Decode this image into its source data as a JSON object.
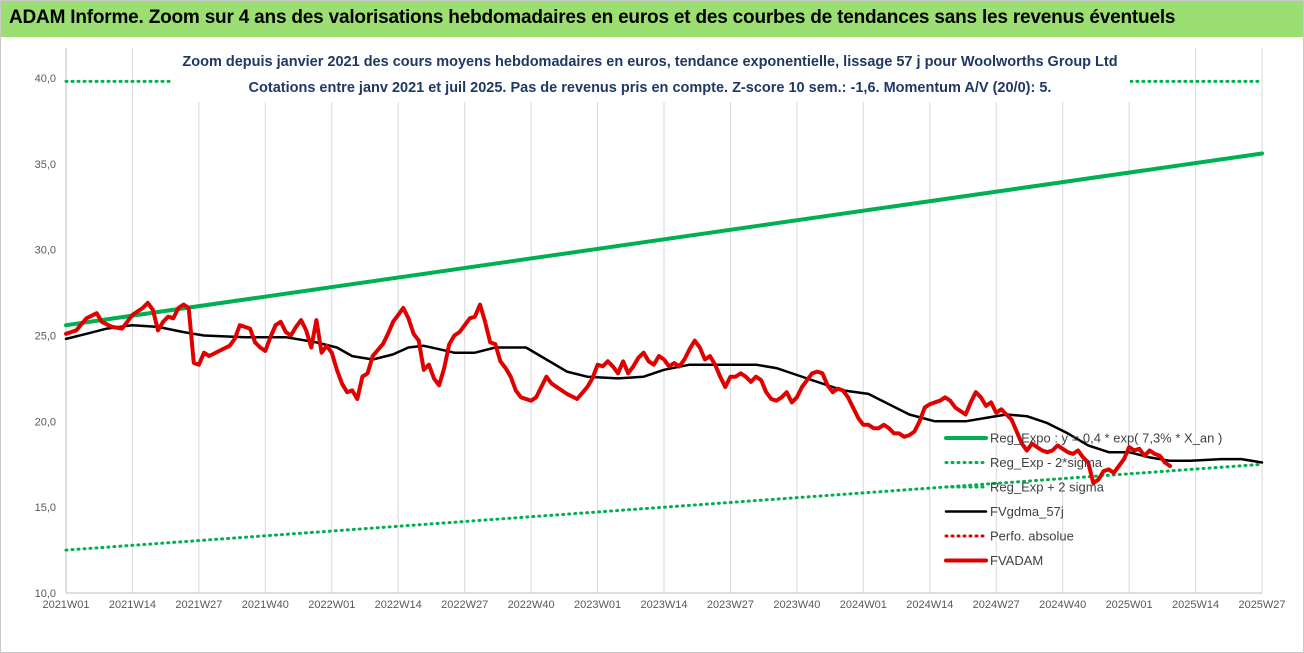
{
  "header": {
    "title": "ADAM Informe. Zoom sur 4 ans des valorisations hebdomadaires en euros et des courbes de tendances sans les revenus éventuels"
  },
  "chart_data": {
    "type": "line",
    "subtitle_line1": "Zoom depuis janvier 2021 des cours moyens hebdomadaires en euros, tendance exponentielle, lissage 57 j pour Woolworths Group Ltd",
    "subtitle_line2": "Cotations entre janv 2021 et juil 2025. Pas de revenus pris en compte. Z-score 10 sem.: -1,6. Momentum A/V (20/0): 5.",
    "xlabel": "",
    "ylabel": "",
    "ylim": [
      10,
      40
    ],
    "yticks": [
      "10,0",
      "15,0",
      "20,0",
      "25,0",
      "30,0",
      "35,0",
      "40,0"
    ],
    "x_tick_labels": [
      "2021W01",
      "2021W14",
      "2021W27",
      "2021W40",
      "2022W01",
      "2022W14",
      "2022W27",
      "2022W40",
      "2023W01",
      "2023W14",
      "2023W27",
      "2023W40",
      "2024W01",
      "2024W14",
      "2024W27",
      "2024W40",
      "2025W01",
      "2025W14",
      "2025W27"
    ],
    "grid": "vertical",
    "legend_position": "right",
    "series": [
      {
        "name": "Reg_Expo : y = 0,4 * exp( 7,3% *  X_an )",
        "color": "#00b050",
        "style": "solid-thick",
        "values": [
          [
            0,
            25.6
          ],
          [
            234,
            35.6
          ]
        ]
      },
      {
        "name": "Reg_Exp - 2*sigma",
        "color": "#00b050",
        "style": "dotted",
        "values": [
          [
            0,
            12.5
          ],
          [
            234,
            17.5
          ]
        ]
      },
      {
        "name": "Reg_Exp + 2 sigma",
        "color": "#00b050",
        "style": "dotted",
        "values": [
          [
            0,
            39.8
          ],
          [
            21,
            39.8
          ],
          [
            206,
            39.8
          ],
          [
            234,
            39.8
          ]
        ]
      },
      {
        "name": "FVgdma_57j",
        "color": "#000000",
        "style": "solid",
        "values": [
          [
            0,
            24.8
          ],
          [
            4,
            25.1
          ],
          [
            8,
            25.4
          ],
          [
            13,
            25.6
          ],
          [
            18,
            25.5
          ],
          [
            23,
            25.2
          ],
          [
            27,
            25.0
          ],
          [
            35,
            24.9
          ],
          [
            43,
            24.9
          ],
          [
            49,
            24.6
          ],
          [
            53,
            24.3
          ],
          [
            56,
            23.8
          ],
          [
            60,
            23.6
          ],
          [
            64,
            23.9
          ],
          [
            67,
            24.3
          ],
          [
            70,
            24.4
          ],
          [
            73,
            24.2
          ],
          [
            76,
            24.0
          ],
          [
            80,
            24.0
          ],
          [
            84,
            24.3
          ],
          [
            90,
            24.3
          ],
          [
            94,
            23.6
          ],
          [
            98,
            22.9
          ],
          [
            102,
            22.6
          ],
          [
            108,
            22.5
          ],
          [
            113,
            22.6
          ],
          [
            117,
            23.0
          ],
          [
            122,
            23.3
          ],
          [
            127,
            23.3
          ],
          [
            131,
            23.3
          ],
          [
            135,
            23.3
          ],
          [
            139,
            23.1
          ],
          [
            143,
            22.7
          ],
          [
            148,
            22.2
          ],
          [
            152,
            21.8
          ],
          [
            157,
            21.6
          ],
          [
            161,
            21.0
          ],
          [
            165,
            20.4
          ],
          [
            170,
            20.0
          ],
          [
            176,
            20.0
          ],
          [
            180,
            20.2
          ],
          [
            184,
            20.4
          ],
          [
            188,
            20.3
          ],
          [
            192,
            19.9
          ],
          [
            196,
            19.3
          ],
          [
            200,
            18.6
          ],
          [
            204,
            18.2
          ],
          [
            208,
            18.2
          ],
          [
            212,
            17.9
          ],
          [
            216,
            17.7
          ],
          [
            220,
            17.7
          ],
          [
            226,
            17.8
          ],
          [
            230,
            17.8
          ],
          [
            234,
            17.6
          ]
        ]
      },
      {
        "name": "Perfo. absolue",
        "color": "#e00000",
        "style": "dotted",
        "values": []
      },
      {
        "name": "FVADAM",
        "color": "#e00000",
        "style": "solid-thick",
        "values": [
          [
            0,
            25.1
          ],
          [
            2,
            25.3
          ],
          [
            4,
            26.0
          ],
          [
            6,
            26.3
          ],
          [
            7,
            25.8
          ],
          [
            9,
            25.5
          ],
          [
            11,
            25.4
          ],
          [
            13,
            26.2
          ],
          [
            15,
            26.6
          ],
          [
            16,
            26.9
          ],
          [
            17,
            26.5
          ],
          [
            18,
            25.3
          ],
          [
            19,
            25.8
          ],
          [
            20,
            26.1
          ],
          [
            21,
            26.0
          ],
          [
            22,
            26.6
          ],
          [
            23,
            26.8
          ],
          [
            24,
            26.6
          ],
          [
            25,
            23.4
          ],
          [
            26,
            23.3
          ],
          [
            27,
            24.0
          ],
          [
            28,
            23.8
          ],
          [
            30,
            24.1
          ],
          [
            32,
            24.4
          ],
          [
            33,
            24.8
          ],
          [
            34,
            25.6
          ],
          [
            35,
            25.5
          ],
          [
            36,
            25.4
          ],
          [
            37,
            24.6
          ],
          [
            38,
            24.3
          ],
          [
            39,
            24.1
          ],
          [
            40,
            24.9
          ],
          [
            41,
            25.6
          ],
          [
            42,
            25.8
          ],
          [
            43,
            25.2
          ],
          [
            44,
            25.0
          ],
          [
            45,
            25.5
          ],
          [
            46,
            25.9
          ],
          [
            47,
            25.3
          ],
          [
            48,
            24.3
          ],
          [
            49,
            25.9
          ],
          [
            50,
            24.0
          ],
          [
            51,
            24.4
          ],
          [
            52,
            24.0
          ],
          [
            53,
            23.0
          ],
          [
            54,
            22.2
          ],
          [
            55,
            21.7
          ],
          [
            56,
            21.8
          ],
          [
            57,
            21.3
          ],
          [
            58,
            22.6
          ],
          [
            59,
            22.8
          ],
          [
            60,
            23.8
          ],
          [
            62,
            24.5
          ],
          [
            63,
            25.1
          ],
          [
            64,
            25.8
          ],
          [
            65,
            26.2
          ],
          [
            66,
            26.6
          ],
          [
            67,
            26.0
          ],
          [
            68,
            25.1
          ],
          [
            69,
            24.7
          ],
          [
            70,
            23.0
          ],
          [
            71,
            23.3
          ],
          [
            72,
            22.5
          ],
          [
            73,
            22.1
          ],
          [
            74,
            23.1
          ],
          [
            75,
            24.5
          ],
          [
            76,
            25.0
          ],
          [
            77,
            25.2
          ],
          [
            78,
            25.6
          ],
          [
            79,
            26.0
          ],
          [
            80,
            26.1
          ],
          [
            81,
            26.8
          ],
          [
            82,
            25.8
          ],
          [
            83,
            24.6
          ],
          [
            84,
            24.5
          ],
          [
            85,
            23.5
          ],
          [
            86,
            23.1
          ],
          [
            87,
            22.6
          ],
          [
            88,
            21.8
          ],
          [
            89,
            21.4
          ],
          [
            90,
            21.3
          ],
          [
            91,
            21.2
          ],
          [
            92,
            21.4
          ],
          [
            93,
            22.0
          ],
          [
            94,
            22.6
          ],
          [
            95,
            22.2
          ],
          [
            96,
            22.0
          ],
          [
            98,
            21.6
          ],
          [
            100,
            21.3
          ],
          [
            102,
            22.0
          ],
          [
            103,
            22.5
          ],
          [
            104,
            23.3
          ],
          [
            105,
            23.2
          ],
          [
            106,
            23.5
          ],
          [
            107,
            23.2
          ],
          [
            108,
            22.8
          ],
          [
            109,
            23.5
          ],
          [
            110,
            22.8
          ],
          [
            111,
            23.2
          ],
          [
            112,
            23.7
          ],
          [
            113,
            24.0
          ],
          [
            114,
            23.5
          ],
          [
            115,
            23.3
          ],
          [
            116,
            23.8
          ],
          [
            117,
            23.6
          ],
          [
            118,
            23.2
          ],
          [
            119,
            23.4
          ],
          [
            120,
            23.2
          ],
          [
            121,
            23.6
          ],
          [
            122,
            24.2
          ],
          [
            123,
            24.7
          ],
          [
            124,
            24.3
          ],
          [
            125,
            23.6
          ],
          [
            126,
            23.8
          ],
          [
            127,
            23.3
          ],
          [
            128,
            22.6
          ],
          [
            129,
            22.0
          ],
          [
            130,
            22.6
          ],
          [
            131,
            22.6
          ],
          [
            132,
            22.8
          ],
          [
            133,
            22.6
          ],
          [
            134,
            22.3
          ],
          [
            135,
            22.6
          ],
          [
            136,
            22.4
          ],
          [
            137,
            21.7
          ],
          [
            138,
            21.3
          ],
          [
            139,
            21.2
          ],
          [
            140,
            21.4
          ],
          [
            141,
            21.7
          ],
          [
            142,
            21.1
          ],
          [
            143,
            21.4
          ],
          [
            144,
            22.0
          ],
          [
            145,
            22.4
          ],
          [
            146,
            22.8
          ],
          [
            147,
            22.9
          ],
          [
            148,
            22.8
          ],
          [
            149,
            22.1
          ],
          [
            150,
            21.7
          ],
          [
            151,
            21.9
          ],
          [
            152,
            21.8
          ],
          [
            153,
            21.4
          ],
          [
            154,
            20.8
          ],
          [
            155,
            20.2
          ],
          [
            156,
            19.8
          ],
          [
            157,
            19.8
          ],
          [
            158,
            19.6
          ],
          [
            159,
            19.6
          ],
          [
            160,
            19.8
          ],
          [
            161,
            19.6
          ],
          [
            162,
            19.3
          ],
          [
            163,
            19.3
          ],
          [
            164,
            19.1
          ],
          [
            165,
            19.2
          ],
          [
            166,
            19.4
          ],
          [
            167,
            20.0
          ],
          [
            168,
            20.8
          ],
          [
            169,
            21.0
          ],
          [
            170,
            21.1
          ],
          [
            171,
            21.2
          ],
          [
            172,
            21.4
          ],
          [
            173,
            21.2
          ],
          [
            174,
            20.8
          ],
          [
            175,
            20.6
          ],
          [
            176,
            20.4
          ],
          [
            177,
            21.1
          ],
          [
            178,
            21.7
          ],
          [
            179,
            21.4
          ],
          [
            180,
            20.9
          ],
          [
            181,
            21.1
          ],
          [
            182,
            20.5
          ],
          [
            183,
            20.7
          ],
          [
            184,
            20.4
          ],
          [
            185,
            20.1
          ],
          [
            186,
            19.4
          ],
          [
            187,
            18.7
          ],
          [
            188,
            18.3
          ],
          [
            189,
            18.7
          ],
          [
            190,
            18.5
          ],
          [
            191,
            18.3
          ],
          [
            192,
            18.2
          ],
          [
            193,
            18.3
          ],
          [
            194,
            18.6
          ],
          [
            195,
            18.4
          ],
          [
            196,
            18.2
          ],
          [
            197,
            18.1
          ],
          [
            198,
            18.3
          ],
          [
            199,
            17.9
          ],
          [
            200,
            17.6
          ],
          [
            201,
            16.4
          ],
          [
            202,
            16.6
          ],
          [
            203,
            17.1
          ],
          [
            204,
            17.2
          ],
          [
            205,
            17.0
          ],
          [
            206,
            17.4
          ],
          [
            207,
            17.8
          ],
          [
            208,
            18.5
          ],
          [
            209,
            18.3
          ],
          [
            210,
            18.4
          ],
          [
            211,
            18.0
          ],
          [
            212,
            18.3
          ],
          [
            213,
            18.1
          ],
          [
            214,
            18.0
          ],
          [
            215,
            17.6
          ],
          [
            216,
            17.4
          ]
        ]
      }
    ]
  }
}
